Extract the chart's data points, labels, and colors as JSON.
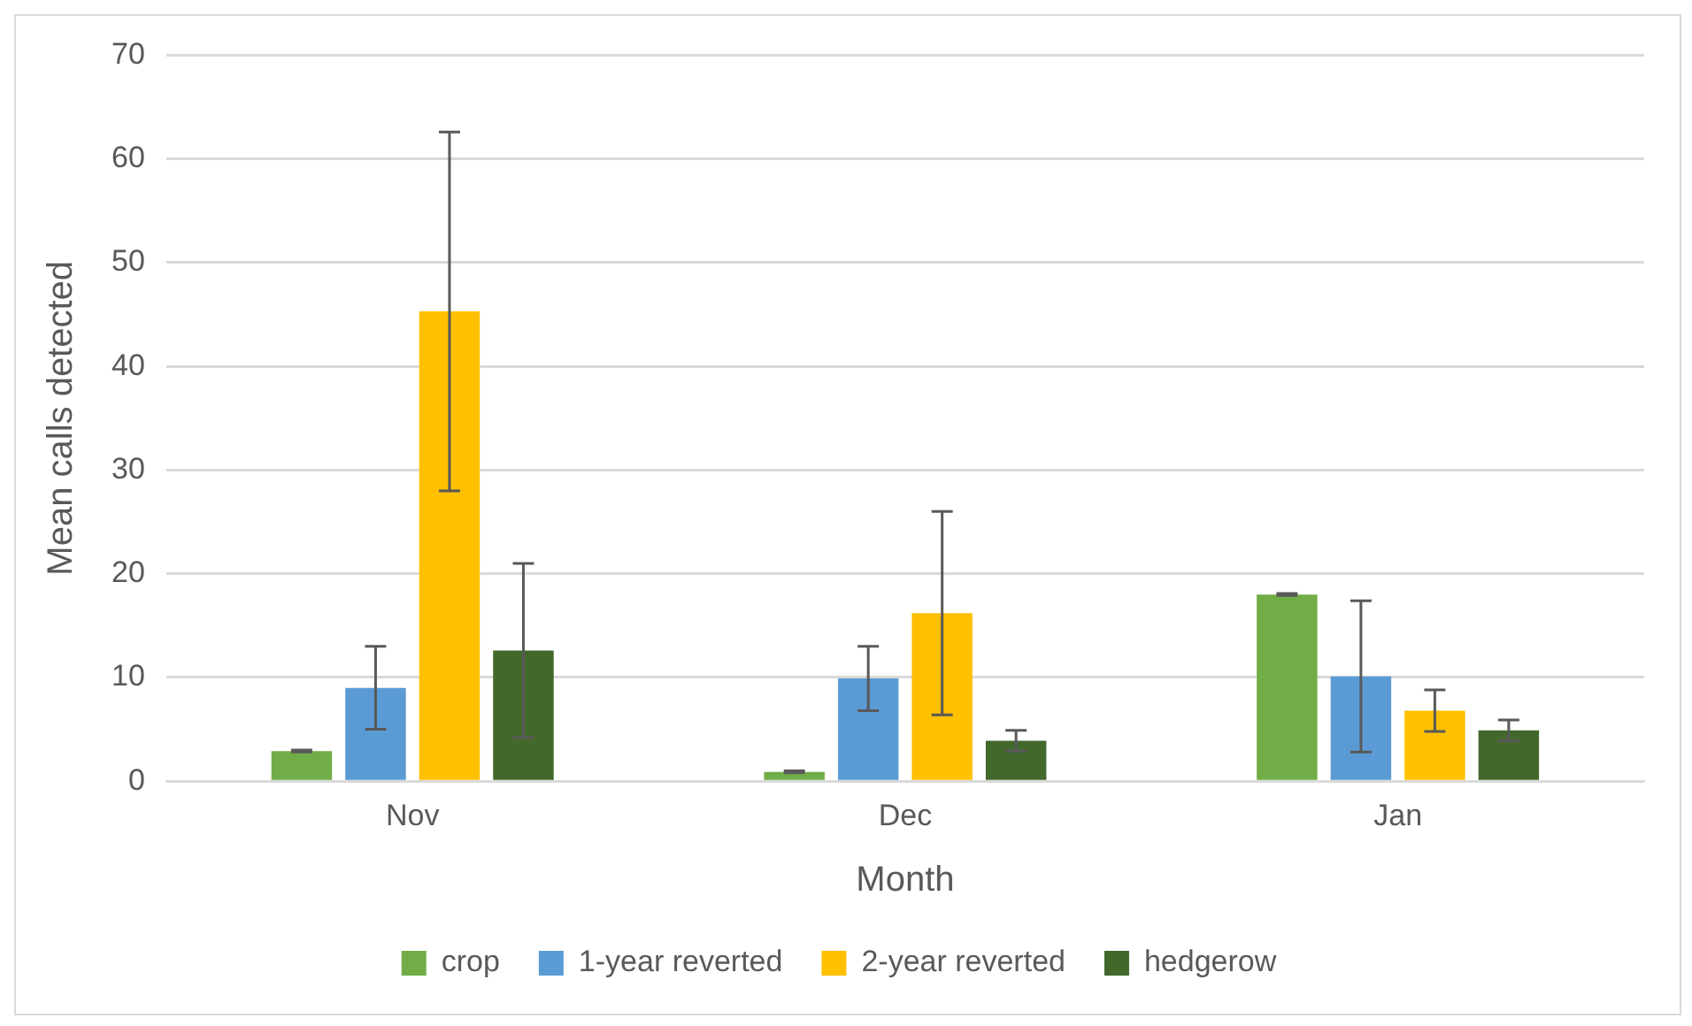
{
  "chart_data": {
    "type": "bar",
    "xlabel": "Month",
    "ylabel": "Mean calls detected",
    "categories": [
      "Nov",
      "Dec",
      "Jan"
    ],
    "series": [
      {
        "name": "crop",
        "color": "#70ad47",
        "values": [
          2.9,
          0.9,
          18.0
        ],
        "errors": [
          0.1,
          0.1,
          0.1
        ]
      },
      {
        "name": "1-year reverted",
        "color": "#5b9bd5",
        "values": [
          9.0,
          9.9,
          10.1
        ],
        "errors": [
          4.0,
          3.1,
          7.3
        ]
      },
      {
        "name": "2-year reverted",
        "color": "#ffc000",
        "values": [
          45.3,
          16.2,
          6.8
        ],
        "errors": [
          17.3,
          9.8,
          2.0
        ]
      },
      {
        "name": "hedgerow",
        "color": "#43682b",
        "values": [
          12.6,
          3.9,
          4.9
        ],
        "errors": [
          8.4,
          1.0,
          1.0
        ]
      }
    ],
    "ylim": [
      0,
      70
    ],
    "yticks": [
      0,
      10,
      20,
      30,
      40,
      50,
      60,
      70
    ],
    "grid": "y",
    "legend": "bottom"
  }
}
